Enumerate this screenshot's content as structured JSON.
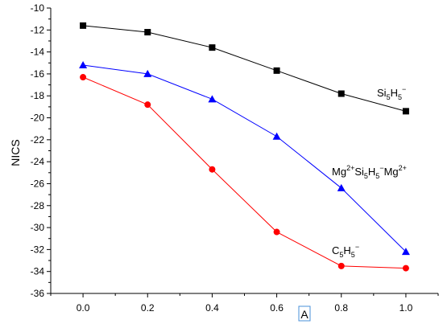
{
  "chart_data": {
    "type": "line",
    "title": "",
    "xlabel": "A",
    "ylabel": "NICS",
    "xlim": [
      -0.1,
      1.1
    ],
    "ylim": [
      -36,
      -10
    ],
    "x": [
      0.0,
      0.2,
      0.4,
      0.6,
      0.8,
      1.0
    ],
    "x_ticks": [
      "0.0",
      "0.2",
      "0.4",
      "0.6",
      "0.8",
      "1.0"
    ],
    "y_ticks": [
      "-10",
      "-12",
      "-14",
      "-16",
      "-18",
      "-20",
      "-22",
      "-24",
      "-26",
      "-28",
      "-30",
      "-32",
      "-34",
      "-36"
    ],
    "grid": false,
    "series": [
      {
        "name": "Si5H5⁻",
        "color": "#000000",
        "marker": "square",
        "values": [
          -11.6,
          -12.2,
          -13.6,
          -15.7,
          -17.8,
          -19.4
        ]
      },
      {
        "name": "Mg²⁺Si5H5⁻Mg²⁺",
        "color": "#0000ff",
        "marker": "triangle",
        "values": [
          -15.2,
          -16.0,
          -18.3,
          -21.7,
          -26.4,
          -32.2
        ]
      },
      {
        "name": "C5H5⁻",
        "color": "#ff0000",
        "marker": "circle",
        "values": [
          -16.3,
          -18.8,
          -24.7,
          -30.4,
          -33.5,
          -33.7
        ]
      }
    ]
  }
}
